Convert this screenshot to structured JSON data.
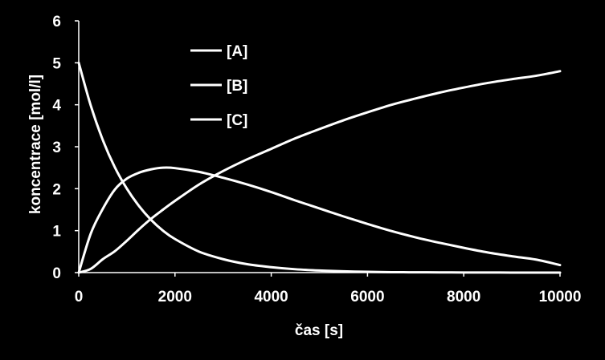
{
  "chart_data": {
    "type": "line",
    "title": "",
    "xlabel": "čas [s]",
    "ylabel": "koncentrace [mol/l]",
    "xlim": [
      0,
      10000
    ],
    "ylim": [
      0,
      6
    ],
    "x_ticks": [
      "0",
      "2000",
      "4000",
      "6000",
      "8000",
      "10000"
    ],
    "y_ticks": [
      "0",
      "1",
      "2",
      "3",
      "4",
      "5",
      "6"
    ],
    "grid": false,
    "legend_position": "top-center",
    "colors": {
      "background": "#000000",
      "line": "#ffffff",
      "text": "#ffffff"
    },
    "x": [
      0,
      250,
      500,
      750,
      1000,
      1250,
      1500,
      1750,
      2000,
      2500,
      3000,
      3500,
      4000,
      4500,
      5000,
      5500,
      6000,
      6500,
      7000,
      7500,
      8000,
      8500,
      9000,
      9500,
      10000
    ],
    "series": [
      {
        "name": "[A]",
        "values": [
          5.0,
          3.98,
          3.16,
          2.51,
          2.0,
          1.59,
          1.26,
          1.0,
          0.8,
          0.5,
          0.32,
          0.2,
          0.13,
          0.08,
          0.05,
          0.03,
          0.02,
          0.01,
          0.008,
          0.005,
          0.003,
          0.002,
          0.001,
          0.001,
          0.0
        ]
      },
      {
        "name": "[B]",
        "values": [
          0.0,
          0.93,
          1.52,
          1.98,
          2.24,
          2.38,
          2.46,
          2.5,
          2.49,
          2.4,
          2.26,
          2.1,
          1.92,
          1.72,
          1.53,
          1.34,
          1.16,
          0.99,
          0.84,
          0.71,
          0.59,
          0.48,
          0.39,
          0.31,
          0.18
        ]
      },
      {
        "name": "[C]",
        "values": [
          0.0,
          0.09,
          0.32,
          0.51,
          0.76,
          1.03,
          1.28,
          1.5,
          1.71,
          2.1,
          2.42,
          2.7,
          2.95,
          3.2,
          3.42,
          3.63,
          3.82,
          4.0,
          4.15,
          4.29,
          4.41,
          4.52,
          4.61,
          4.69,
          4.8
        ]
      }
    ]
  }
}
